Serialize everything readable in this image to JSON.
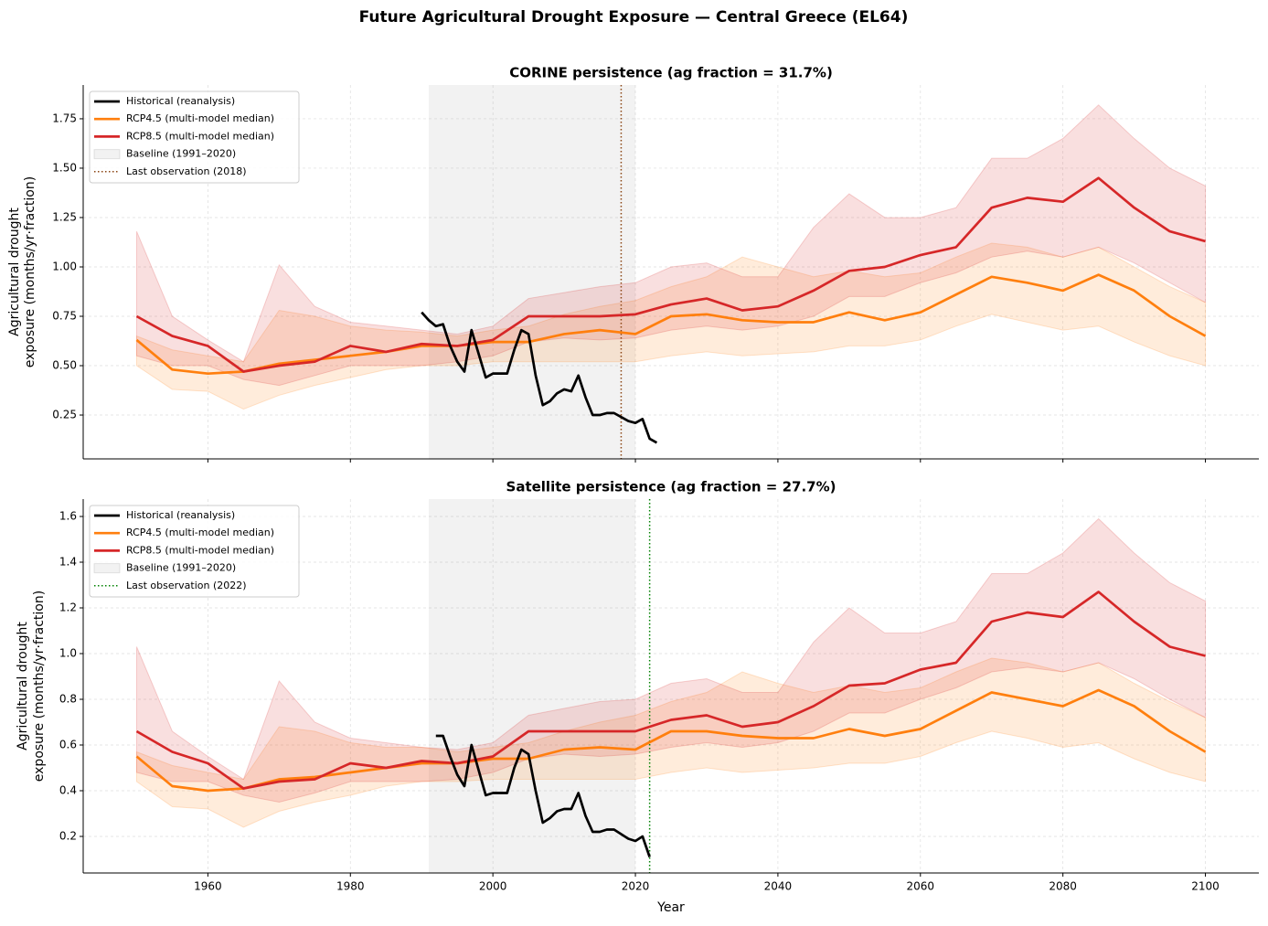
{
  "title": "Future Agricultural Drought Exposure — Central Greece (EL64)",
  "chart_data": [
    {
      "type": "line",
      "title": "CORINE persistence (ag fraction = 31.7%)",
      "ylabel": [
        "Agricultural drought",
        "exposure (months/yr·fraction)"
      ],
      "xlim": [
        1942.5,
        2107.5
      ],
      "ylim": [
        0.028,
        1.921
      ],
      "xticks": [
        1960,
        1980,
        2000,
        2020,
        2040,
        2060,
        2080,
        2100
      ],
      "yticks": [
        0.25,
        0.5,
        0.75,
        1.0,
        1.25,
        1.5,
        1.75
      ],
      "yticks_labels": [
        "0.25",
        "0.50",
        "0.75",
        "1.00",
        "1.25",
        "1.50",
        "1.75"
      ],
      "show_xtick_labels": false,
      "grid": true,
      "legend": "upper left",
      "x": [
        1950,
        1955,
        1960,
        1965,
        1970,
        1975,
        1980,
        1985,
        1990,
        1995,
        2000,
        2005,
        2010,
        2015,
        2020,
        2025,
        2030,
        2035,
        2040,
        2045,
        2050,
        2055,
        2060,
        2065,
        2070,
        2075,
        2080,
        2085,
        2090,
        2095,
        2100
      ],
      "series": [
        {
          "name": "Historical (reanalysis)",
          "color": "#000000",
          "x": [
            1990,
            1991,
            1992,
            1993,
            1994,
            1995,
            1996,
            1997,
            1998,
            1999,
            2000,
            2001,
            2002,
            2003,
            2004,
            2005,
            2006,
            2007,
            2008,
            2009,
            2010,
            2011,
            2012,
            2013,
            2014,
            2015,
            2016,
            2017,
            2018,
            2019,
            2020,
            2021,
            2022,
            2023
          ],
          "values": [
            0.77,
            0.73,
            0.7,
            0.71,
            0.6,
            0.52,
            0.47,
            0.68,
            0.56,
            0.44,
            0.46,
            0.46,
            0.46,
            0.58,
            0.68,
            0.66,
            0.45,
            0.3,
            0.32,
            0.36,
            0.38,
            0.37,
            0.45,
            0.34,
            0.25,
            0.25,
            0.26,
            0.26,
            0.24,
            0.22,
            0.21,
            0.23,
            0.13,
            0.11
          ]
        },
        {
          "name": "RCP4.5 (multi-model median)",
          "color": "#ff7f0e",
          "values": [
            0.63,
            0.48,
            0.46,
            0.47,
            0.51,
            0.53,
            0.55,
            0.57,
            0.6,
            0.6,
            0.62,
            0.62,
            0.66,
            0.68,
            0.66,
            0.75,
            0.76,
            0.73,
            0.72,
            0.72,
            0.77,
            0.73,
            0.77,
            0.86,
            0.95,
            0.92,
            0.88,
            0.96,
            0.88,
            0.75,
            0.65
          ],
          "lower": [
            0.5,
            0.38,
            0.37,
            0.28,
            0.35,
            0.4,
            0.44,
            0.48,
            0.5,
            0.5,
            0.52,
            0.52,
            0.52,
            0.52,
            0.52,
            0.55,
            0.57,
            0.55,
            0.56,
            0.57,
            0.6,
            0.6,
            0.63,
            0.7,
            0.76,
            0.72,
            0.68,
            0.7,
            0.62,
            0.55,
            0.5
          ],
          "upper": [
            0.65,
            0.58,
            0.55,
            0.52,
            0.78,
            0.75,
            0.7,
            0.68,
            0.67,
            0.65,
            0.68,
            0.7,
            0.76,
            0.8,
            0.83,
            0.9,
            0.95,
            1.05,
            1.0,
            0.95,
            0.98,
            0.95,
            0.97,
            1.05,
            1.12,
            1.1,
            1.05,
            1.1,
            1.0,
            0.9,
            0.82
          ]
        },
        {
          "name": "RCP8.5 (multi-model median)",
          "color": "#d62728",
          "values": [
            0.75,
            0.65,
            0.6,
            0.47,
            0.5,
            0.52,
            0.6,
            0.57,
            0.61,
            0.6,
            0.63,
            0.75,
            0.75,
            0.75,
            0.76,
            0.81,
            0.84,
            0.78,
            0.8,
            0.88,
            0.98,
            1.0,
            1.06,
            1.1,
            1.3,
            1.35,
            1.33,
            1.45,
            1.3,
            1.18,
            1.13
          ],
          "lower": [
            0.55,
            0.5,
            0.5,
            0.43,
            0.4,
            0.45,
            0.5,
            0.5,
            0.5,
            0.52,
            0.55,
            0.62,
            0.64,
            0.63,
            0.64,
            0.68,
            0.7,
            0.68,
            0.7,
            0.75,
            0.85,
            0.85,
            0.92,
            0.97,
            1.05,
            1.08,
            1.05,
            1.1,
            1.02,
            0.92,
            0.82
          ],
          "upper": [
            1.18,
            0.75,
            0.63,
            0.52,
            1.01,
            0.8,
            0.72,
            0.7,
            0.68,
            0.66,
            0.7,
            0.84,
            0.87,
            0.9,
            0.92,
            1.0,
            1.02,
            0.95,
            0.95,
            1.2,
            1.37,
            1.25,
            1.25,
            1.3,
            1.55,
            1.55,
            1.65,
            1.82,
            1.65,
            1.5,
            1.41
          ]
        }
      ],
      "baseline": {
        "name": "Baseline (1991–2020)",
        "range": [
          1991,
          2020
        ],
        "color": "#808080"
      },
      "last_observation": {
        "name": "Last observation (2018)",
        "x": 2018,
        "color": "#8b4513"
      }
    },
    {
      "type": "line",
      "title": "Satellite persistence (ag fraction = 27.7%)",
      "ylabel": [
        "Agricultural drought",
        "exposure (months/yr·fraction)"
      ],
      "xlabel": "Year",
      "xlim": [
        1942.5,
        2107.5
      ],
      "ylim": [
        0.04,
        1.676
      ],
      "xticks": [
        1960,
        1980,
        2000,
        2020,
        2040,
        2060,
        2080,
        2100
      ],
      "yticks": [
        0.2,
        0.4,
        0.6,
        0.8,
        1.0,
        1.2,
        1.4,
        1.6
      ],
      "yticks_labels": [
        "0.2",
        "0.4",
        "0.6",
        "0.8",
        "1.0",
        "1.2",
        "1.4",
        "1.6"
      ],
      "show_xtick_labels": true,
      "grid": true,
      "legend": "upper left",
      "x": [
        1950,
        1955,
        1960,
        1965,
        1970,
        1975,
        1980,
        1985,
        1990,
        1995,
        2000,
        2005,
        2010,
        2015,
        2020,
        2025,
        2030,
        2035,
        2040,
        2045,
        2050,
        2055,
        2060,
        2065,
        2070,
        2075,
        2080,
        2085,
        2090,
        2095,
        2100
      ],
      "series": [
        {
          "name": "Historical (reanalysis)",
          "color": "#000000",
          "x": [
            1992,
            1993,
            1994,
            1995,
            1996,
            1997,
            1998,
            1999,
            2000,
            2001,
            2002,
            2003,
            2004,
            2005,
            2006,
            2007,
            2008,
            2009,
            2010,
            2011,
            2012,
            2013,
            2014,
            2015,
            2016,
            2017,
            2018,
            2019,
            2020,
            2021,
            2022
          ],
          "values": [
            0.64,
            0.64,
            0.55,
            0.47,
            0.42,
            0.6,
            0.49,
            0.38,
            0.39,
            0.39,
            0.39,
            0.5,
            0.58,
            0.56,
            0.4,
            0.26,
            0.28,
            0.31,
            0.32,
            0.32,
            0.39,
            0.29,
            0.22,
            0.22,
            0.23,
            0.23,
            0.21,
            0.19,
            0.18,
            0.2,
            0.11
          ]
        },
        {
          "name": "RCP4.5 (multi-model median)",
          "color": "#ff7f0e",
          "values": [
            0.55,
            0.42,
            0.4,
            0.41,
            0.45,
            0.46,
            0.48,
            0.5,
            0.52,
            0.52,
            0.54,
            0.54,
            0.58,
            0.59,
            0.58,
            0.66,
            0.66,
            0.64,
            0.63,
            0.63,
            0.67,
            0.64,
            0.67,
            0.75,
            0.83,
            0.8,
            0.77,
            0.84,
            0.77,
            0.66,
            0.57
          ],
          "lower": [
            0.44,
            0.33,
            0.32,
            0.24,
            0.31,
            0.35,
            0.38,
            0.42,
            0.44,
            0.44,
            0.45,
            0.45,
            0.45,
            0.45,
            0.45,
            0.48,
            0.5,
            0.48,
            0.49,
            0.5,
            0.52,
            0.52,
            0.55,
            0.61,
            0.66,
            0.63,
            0.59,
            0.61,
            0.54,
            0.48,
            0.44
          ],
          "upper": [
            0.57,
            0.51,
            0.48,
            0.45,
            0.68,
            0.66,
            0.61,
            0.59,
            0.59,
            0.57,
            0.59,
            0.61,
            0.66,
            0.7,
            0.73,
            0.79,
            0.83,
            0.92,
            0.87,
            0.83,
            0.86,
            0.83,
            0.85,
            0.92,
            0.98,
            0.96,
            0.92,
            0.96,
            0.87,
            0.79,
            0.72
          ]
        },
        {
          "name": "RCP8.5 (multi-model median)",
          "color": "#d62728",
          "values": [
            0.66,
            0.57,
            0.52,
            0.41,
            0.44,
            0.45,
            0.52,
            0.5,
            0.53,
            0.52,
            0.55,
            0.66,
            0.66,
            0.66,
            0.66,
            0.71,
            0.73,
            0.68,
            0.7,
            0.77,
            0.86,
            0.87,
            0.93,
            0.96,
            1.14,
            1.18,
            1.16,
            1.27,
            1.14,
            1.03,
            0.99
          ],
          "lower": [
            0.48,
            0.44,
            0.44,
            0.38,
            0.35,
            0.39,
            0.44,
            0.44,
            0.44,
            0.45,
            0.48,
            0.54,
            0.56,
            0.55,
            0.56,
            0.59,
            0.61,
            0.59,
            0.61,
            0.66,
            0.74,
            0.74,
            0.8,
            0.85,
            0.92,
            0.94,
            0.92,
            0.96,
            0.89,
            0.8,
            0.72
          ],
          "upper": [
            1.03,
            0.66,
            0.55,
            0.45,
            0.88,
            0.7,
            0.63,
            0.61,
            0.59,
            0.58,
            0.61,
            0.73,
            0.76,
            0.79,
            0.8,
            0.87,
            0.89,
            0.83,
            0.83,
            1.05,
            1.2,
            1.09,
            1.09,
            1.14,
            1.35,
            1.35,
            1.44,
            1.59,
            1.44,
            1.31,
            1.23
          ]
        }
      ],
      "baseline": {
        "name": "Baseline (1991–2020)",
        "range": [
          1991,
          2020
        ],
        "color": "#808080"
      },
      "last_observation": {
        "name": "Last observation (2022)",
        "x": 2022,
        "color": "#008000"
      }
    }
  ]
}
